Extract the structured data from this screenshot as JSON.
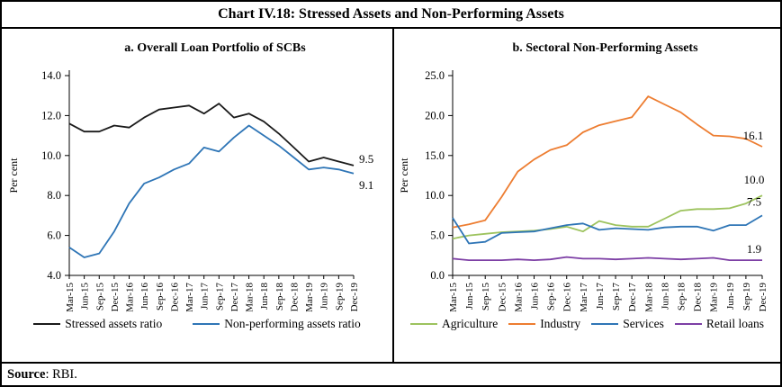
{
  "header": {
    "title": "Chart IV.18: Stressed Assets and Non-Performing Assets"
  },
  "source": {
    "label": "Source",
    "rest": ": RBI."
  },
  "categories": [
    "Mar-15",
    "Jun-15",
    "Sep-15",
    "Dec-15",
    "Mar-16",
    "Jun-16",
    "Sep-16",
    "Dec-16",
    "Mar-17",
    "Jun-17",
    "Sep-17",
    "Dec-17",
    "Mar-18",
    "Jun-18",
    "Sep-18",
    "Dec-18",
    "Mar-19",
    "Jun-19",
    "Sep-19",
    "Dec-19"
  ],
  "chart_data": [
    {
      "type": "line",
      "panel": "a",
      "title": "a. Overall Loan Portfolio of SCBs",
      "ylabel": "Per cent",
      "ylim": [
        4.0,
        14.0
      ],
      "yticks": [
        4.0,
        6.0,
        8.0,
        10.0,
        12.0,
        14.0
      ],
      "ytick_labels": [
        "4.0",
        "6.0",
        "8.0",
        "10.0",
        "12.0",
        "14.0"
      ],
      "grid": false,
      "legend_position": "bottom",
      "series": [
        {
          "name": "Stressed assets ratio",
          "color": "#1a1a1a",
          "end_label": "9.5",
          "values": [
            11.6,
            11.2,
            11.2,
            11.5,
            11.4,
            11.9,
            12.3,
            12.4,
            12.5,
            12.1,
            12.6,
            11.9,
            12.1,
            11.7,
            11.1,
            10.4,
            9.7,
            9.9,
            9.7,
            9.5
          ]
        },
        {
          "name": "Non-performing assets ratio",
          "color": "#2e75b6",
          "end_label": "9.1",
          "values": [
            5.4,
            4.9,
            5.1,
            6.2,
            7.6,
            8.6,
            8.9,
            9.3,
            9.6,
            10.4,
            10.2,
            10.9,
            11.5,
            11.0,
            10.5,
            9.9,
            9.3,
            9.4,
            9.3,
            9.1
          ]
        }
      ]
    },
    {
      "type": "line",
      "panel": "b",
      "title": "b. Sectoral Non-Performing Assets",
      "ylabel": "Per cent",
      "ylim": [
        0.0,
        25.0
      ],
      "yticks": [
        0.0,
        5.0,
        10.0,
        15.0,
        20.0,
        25.0
      ],
      "ytick_labels": [
        "0.0",
        "5.0",
        "10.0",
        "15.0",
        "20.0",
        "25.0"
      ],
      "grid": false,
      "legend_position": "bottom",
      "series": [
        {
          "name": "Agriculture",
          "color": "#9dc35e",
          "end_label": "10.0",
          "values": [
            4.6,
            5.0,
            5.2,
            5.4,
            5.5,
            5.6,
            5.8,
            6.1,
            5.5,
            6.8,
            6.3,
            6.1,
            6.1,
            7.1,
            8.1,
            8.3,
            8.3,
            8.4,
            9.0,
            10.0
          ]
        },
        {
          "name": "Industry",
          "color": "#ed7d31",
          "end_label": "16.1",
          "values": [
            6.0,
            6.4,
            6.9,
            9.8,
            13.0,
            14.5,
            15.7,
            16.3,
            17.9,
            18.8,
            19.3,
            19.8,
            22.4,
            21.4,
            20.4,
            18.9,
            17.5,
            17.4,
            17.1,
            16.1
          ]
        },
        {
          "name": "Services",
          "color": "#2e75b6",
          "end_label": "7.5",
          "values": [
            7.2,
            4.0,
            4.2,
            5.3,
            5.4,
            5.5,
            5.9,
            6.3,
            6.5,
            5.7,
            5.9,
            5.8,
            5.7,
            6.0,
            6.1,
            6.1,
            5.6,
            6.3,
            6.3,
            7.5
          ]
        },
        {
          "name": "Retail loans",
          "color": "#7d3fa5",
          "end_label": "1.9",
          "values": [
            2.1,
            1.9,
            1.9,
            1.9,
            2.0,
            1.9,
            2.0,
            2.3,
            2.1,
            2.1,
            2.0,
            2.1,
            2.2,
            2.1,
            2.0,
            2.1,
            2.2,
            1.9,
            1.9,
            1.9
          ]
        }
      ]
    }
  ]
}
